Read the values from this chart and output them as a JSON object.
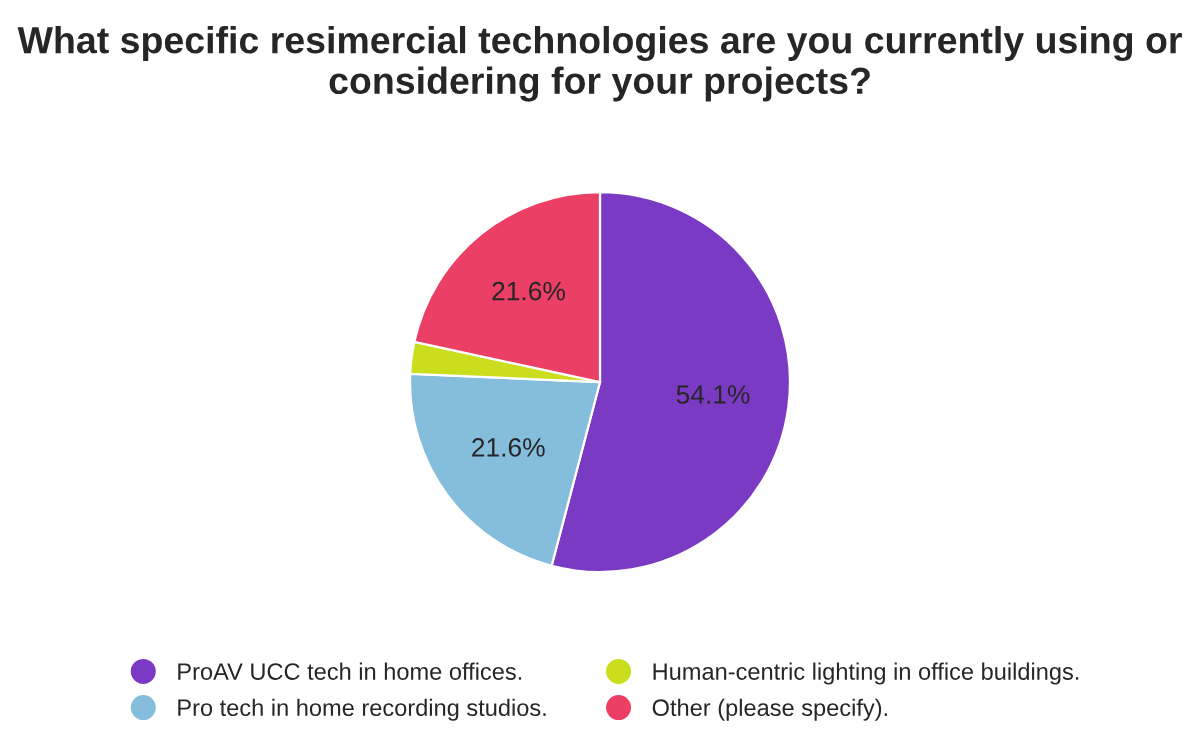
{
  "chart_data": {
    "type": "pie",
    "title": "What specific resimercial technologies are you currently using or considering for your projects?",
    "categories": [
      "ProAV UCC tech in home offices.",
      "Pro tech in home recording studios.",
      "Human-centric lighting in office buildings.",
      "Other (please specify)."
    ],
    "values": [
      54.1,
      21.6,
      2.7,
      21.6
    ],
    "value_labels": [
      "54.1%",
      "21.6%",
      null,
      "21.6%"
    ],
    "colors": [
      "#7b3ac4",
      "#85bddc",
      "#cade1e",
      "#ec3f65"
    ],
    "legend": "bottom"
  }
}
